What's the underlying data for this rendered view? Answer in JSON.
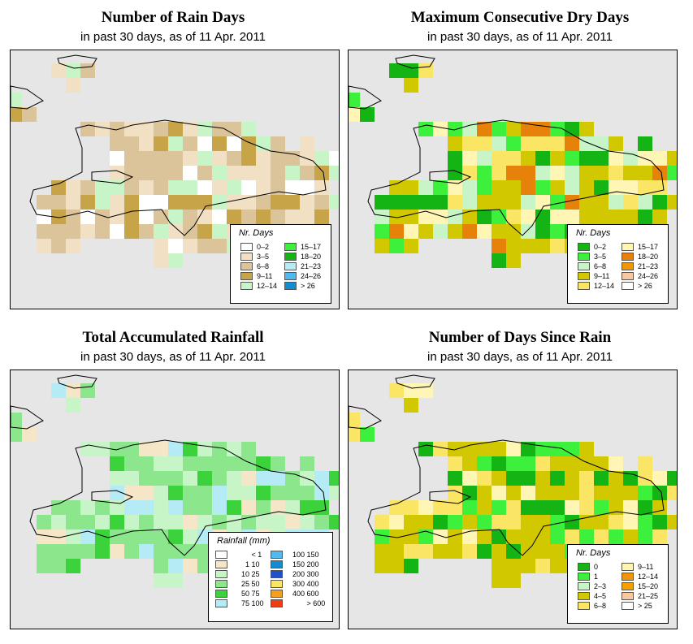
{
  "panels": [
    {
      "id": "rain-days",
      "title": "Number of Rain Days",
      "subtitle": "in past 30 days, as of  11 Apr. 2011",
      "legend": {
        "title": "Nr. Days",
        "items": [
          {
            "label": "0–2",
            "color": "#ffffff"
          },
          {
            "label": "3–5",
            "color": "#f2e0c4"
          },
          {
            "label": "6–8",
            "color": "#dcc49a"
          },
          {
            "label": "9–11",
            "color": "#c8a448"
          },
          {
            "label": "12–14",
            "color": "#c8f5c8"
          },
          {
            "label": "15–17",
            "color": "#3cf03c"
          },
          {
            "label": "18–20",
            "color": "#14b414"
          },
          {
            "label": "21–23",
            "color": "#b4ebf5"
          },
          {
            "label": "24–26",
            "color": "#50b9f0"
          },
          {
            "label": "> 26",
            "color": "#148cd2"
          }
        ]
      }
    },
    {
      "id": "max-dry-days",
      "title": "Maximum Consecutive Dry Days",
      "subtitle": "in past 30 days, as of  11 Apr. 2011",
      "legend": {
        "title": "Nr. Days",
        "items": [
          {
            "label": "0–2",
            "color": "#14b414"
          },
          {
            "label": "3–5",
            "color": "#3cf03c"
          },
          {
            "label": "6–8",
            "color": "#c8f5c8"
          },
          {
            "label": "9–11",
            "color": "#d2c800"
          },
          {
            "label": "12–14",
            "color": "#fae664"
          },
          {
            "label": "15–17",
            "color": "#fff5b4"
          },
          {
            "label": "18–20",
            "color": "#e6820a"
          },
          {
            "label": "21–23",
            "color": "#f0960a"
          },
          {
            "label": "24–26",
            "color": "#fac8a0"
          },
          {
            "label": "> 26",
            "color": "#ffffff"
          }
        ]
      }
    },
    {
      "id": "total-rainfall",
      "title": "Total Accumulated Rainfall",
      "subtitle": "in past 30 days, as of  11 Apr. 2011",
      "legend": {
        "title": "Rainfall (mm)",
        "items": [
          {
            "a": "",
            "b": "< 1",
            "color": "#ffffff"
          },
          {
            "a": "1",
            "b": "10",
            "color": "#f5e6c8"
          },
          {
            "a": "10",
            "b": "25",
            "color": "#c8f5c8"
          },
          {
            "a": "25",
            "b": "50",
            "color": "#8ce68c"
          },
          {
            "a": "50",
            "b": "75",
            "color": "#3cd23c"
          },
          {
            "a": "75",
            "b": "100",
            "color": "#b4ebf5"
          },
          {
            "a": "100",
            "b": "150",
            "color": "#50b9f0"
          },
          {
            "a": "150",
            "b": "200",
            "color": "#148cd2"
          },
          {
            "a": "200",
            "b": "300",
            "color": "#1e50c8"
          },
          {
            "a": "300",
            "b": "400",
            "color": "#fae664"
          },
          {
            "a": "400",
            "b": "600",
            "color": "#f0a01e"
          },
          {
            "a": "",
            "b": "> 600",
            "color": "#f03c14"
          }
        ]
      }
    },
    {
      "id": "days-since-rain",
      "title": "Number of Days Since Rain",
      "subtitle": "in past 30 days, as of  11 Apr. 2011",
      "legend": {
        "title": "Nr. Days",
        "items": [
          {
            "label": "0",
            "color": "#14b414"
          },
          {
            "label": "1",
            "color": "#3cf03c"
          },
          {
            "label": "2–3",
            "color": "#c8f5c8"
          },
          {
            "label": "4–5",
            "color": "#d2c800"
          },
          {
            "label": "6–8",
            "color": "#fae664"
          },
          {
            "label": "9–11",
            "color": "#fff5b4"
          },
          {
            "label": "12–14",
            "color": "#f0960a"
          },
          {
            "label": "15–20",
            "color": "#f5a000"
          },
          {
            "label": "21–25",
            "color": "#fac8a0"
          },
          {
            "label": "> 25",
            "color": "#ffffff"
          }
        ]
      }
    }
  ]
}
